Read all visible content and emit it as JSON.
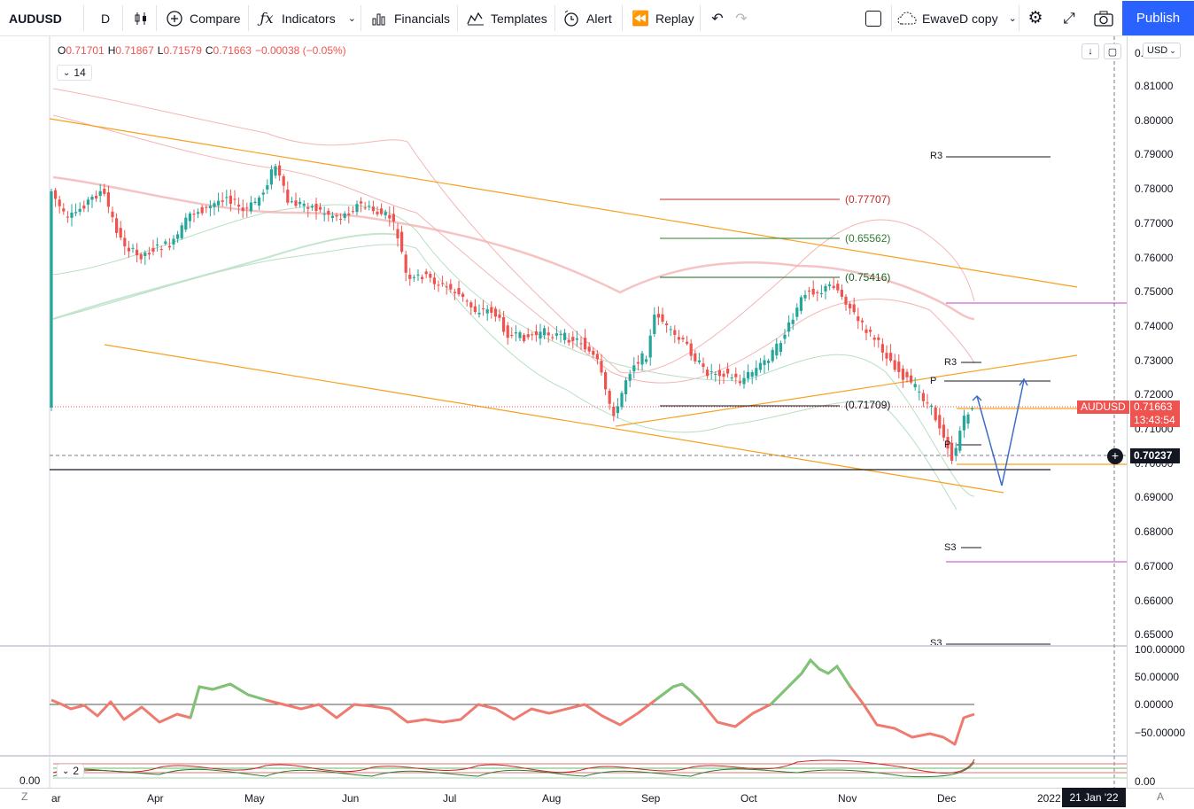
{
  "toolbar": {
    "symbol": "AUDUSD",
    "interval": "D",
    "compare_label": "Compare",
    "indicators_label": "Indicators",
    "financials_label": "Financials",
    "templates_label": "Templates",
    "alert_label": "Alert",
    "replay_label": "Replay",
    "layout_name": "EwaveD copy",
    "publish_label": "Publish"
  },
  "legend": {
    "open_label": "O",
    "open": "0.71701",
    "high_label": "H",
    "high": "0.71867",
    "low_label": "L",
    "low": "0.71579",
    "close_label": "C",
    "close": "0.71663",
    "change": "−0.00038 (−0.05%)",
    "indicator_count": "14",
    "sub_indicator_count": "2"
  },
  "price_axis": {
    "currency": "USD",
    "top_clip": "0.",
    "ticks": [
      "0.81000",
      "0.80000",
      "0.79000",
      "0.78000",
      "0.77000",
      "0.76000",
      "0.75000",
      "0.74000",
      "0.73000",
      "0.72000",
      "0.71000",
      "0.70000",
      "0.69000",
      "0.68000",
      "0.67000",
      "0.66000",
      "0.65000"
    ]
  },
  "osc_axis": {
    "ticks": [
      "100.00000",
      "50.00000",
      "0.00000",
      "−50.00000"
    ]
  },
  "osc2_axis": {
    "tick": "0.00",
    "left_label": "0.00"
  },
  "badges": {
    "symbol": "AUDUSD",
    "price": "0.71663",
    "countdown": "13:43:54",
    "crosshair_price": "0.70237",
    "crosshair_date": "21 Jan '22"
  },
  "fib_labels": [
    "(0.77707)",
    "(0.65562)",
    "(0.75416)",
    "(0.71709)"
  ],
  "pivot_labels": {
    "r3_top": "R3",
    "r3_mid": "R3",
    "p_mid": "P",
    "p_low": "P",
    "s3_mid": "S3",
    "s3_low": "S3"
  },
  "time_axis": {
    "ticks": [
      "ar",
      "Apr",
      "May",
      "Jun",
      "Jul",
      "Aug",
      "Sep",
      "Oct",
      "Nov",
      "Dec",
      "2022"
    ],
    "left_corner": "Z",
    "right_corner": "A"
  },
  "colors": {
    "up": "#26a69a",
    "down": "#ef5350",
    "accent": "#2962ff",
    "channel": "#f7a01d",
    "pivot": "#9c27b0"
  }
}
